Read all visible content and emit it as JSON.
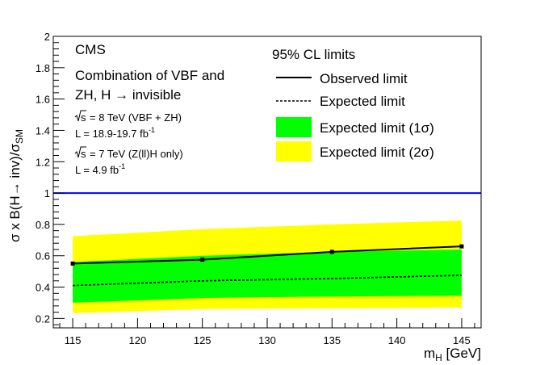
{
  "chart_data": {
    "type": "line",
    "x": [
      115,
      125,
      135,
      145
    ],
    "series": [
      {
        "name": "Observed limit",
        "values": [
          0.55,
          0.575,
          0.625,
          0.66
        ]
      },
      {
        "name": "Expected limit",
        "values": [
          0.41,
          0.44,
          0.455,
          0.475
        ]
      }
    ],
    "bands": [
      {
        "name": "Expected limit (2σ)",
        "low": [
          0.235,
          0.26,
          0.265,
          0.27
        ],
        "high": [
          0.725,
          0.77,
          0.8,
          0.825
        ],
        "color": "#ffff00"
      },
      {
        "name": "Expected limit (1σ)",
        "low": [
          0.3,
          0.33,
          0.34,
          0.345
        ],
        "high": [
          0.56,
          0.6,
          0.625,
          0.64
        ],
        "color": "#00ff00"
      }
    ],
    "reference_line": {
      "y": 1,
      "color": "#0000ff"
    },
    "xlim": [
      113.5,
      146.5
    ],
    "ylim": [
      0.14,
      2
    ],
    "xticks": [
      115,
      120,
      125,
      130,
      135,
      140,
      145
    ],
    "yticks": [
      0.2,
      0.4,
      0.6,
      0.8,
      1,
      1.2,
      1.4,
      1.6,
      1.8,
      2
    ],
    "xtick_labels": [
      "115",
      "120",
      "125",
      "130",
      "135",
      "140",
      "145"
    ],
    "ytick_labels": [
      "0.2",
      "0.4",
      "0.6",
      "0.8",
      "1",
      "1.2",
      "1.4",
      "1.6",
      "1.8",
      "2"
    ],
    "xlabel_main": "m",
    "xlabel_sub": "H",
    "xlabel_unit": " [GeV]",
    "ylabel_main": "σ x B(H→ inv)/σ",
    "ylabel_sub": "SM",
    "legend": {
      "title": "95% CL limits",
      "entries": [
        "Observed limit",
        "Expected limit",
        "Expected limit (1σ)",
        "Expected limit (2σ)"
      ],
      "placement": "top-right"
    },
    "annotations": {
      "experiment": "CMS",
      "process_line1": "Combination of VBF and",
      "process_line2": "ZH, H → invisible",
      "run1_energy": "= 8 TeV (VBF + ZH)",
      "run1_lumi": "L = 18.9-19.7 fb",
      "run2_energy": "= 7 TeV (Z(ll)H only)",
      "run2_lumi": "L = 4.9 fb",
      "sqrt_s": "s",
      "lumi_exponent": "-1"
    },
    "colors": {
      "observed": "#000000",
      "expected": "#000000",
      "one_sigma": "#00ff00",
      "two_sigma": "#ffff00",
      "reference": "#0000ff"
    }
  }
}
